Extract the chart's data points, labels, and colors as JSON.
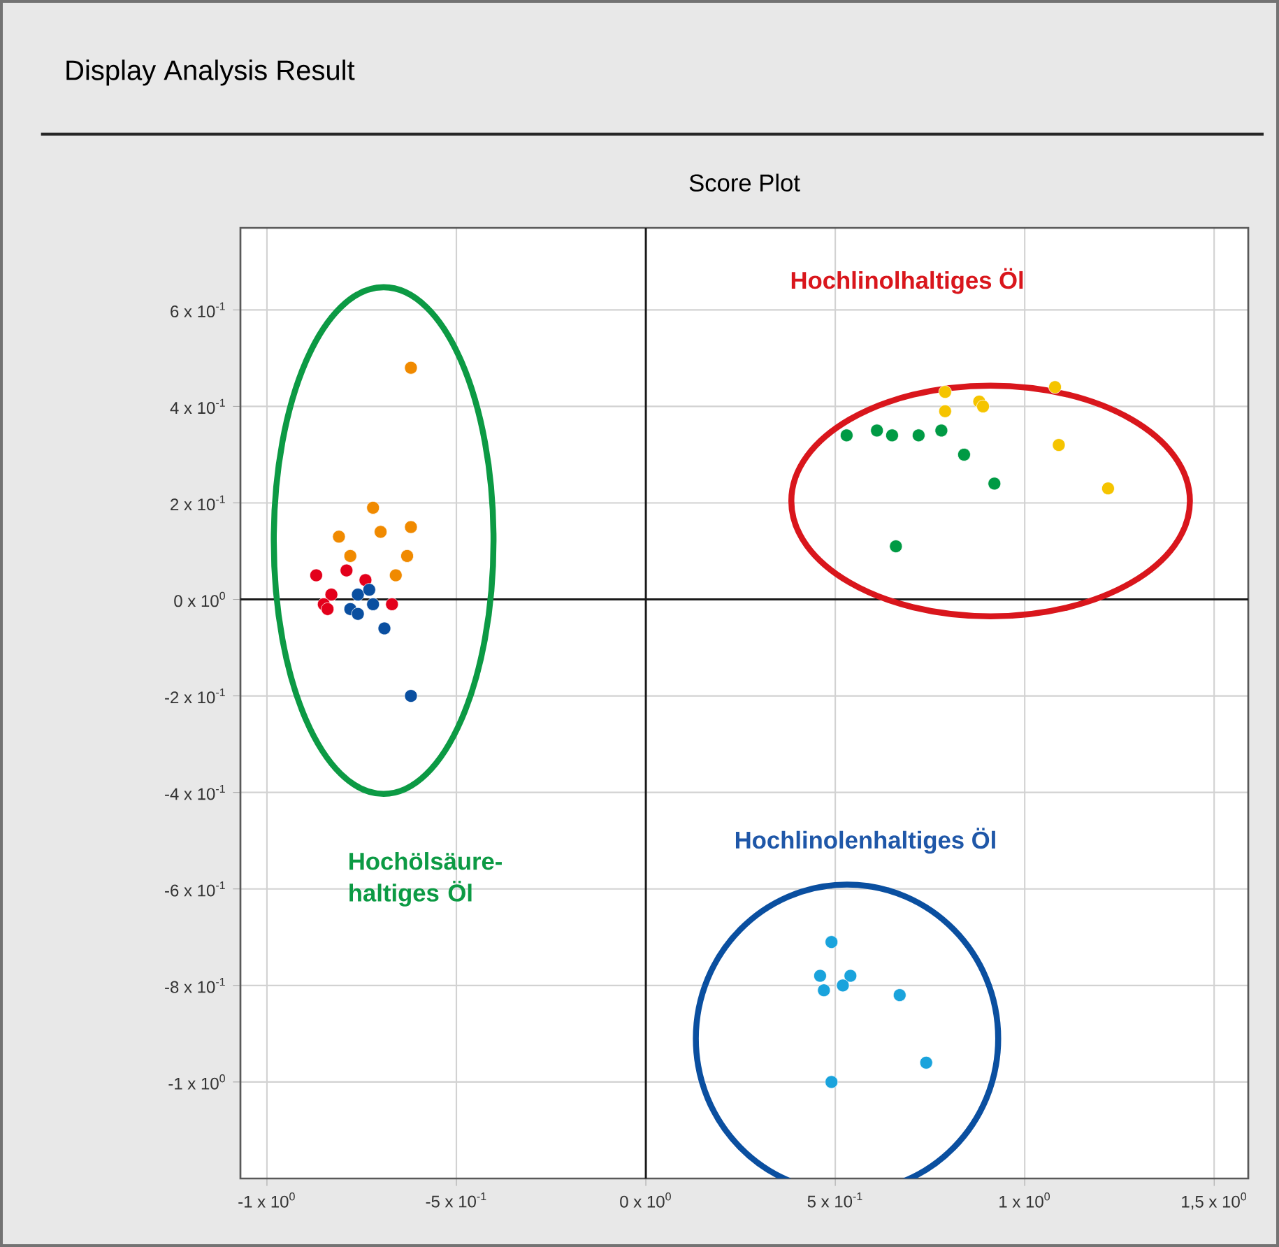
{
  "chart_data": {
    "type": "scatter",
    "title": "Display Analysis Result",
    "subtitle": "Score Plot",
    "xlim": [
      -1.07,
      1.59
    ],
    "ylim": [
      -1.2,
      0.77
    ],
    "xticks": [
      {
        "value": -1,
        "label": "-1 x 10$^{0}$"
      },
      {
        "value": -0.5,
        "label": "-5 x 10$^{-1}$"
      },
      {
        "value": 0,
        "label": "0 x 10$^{0}$"
      },
      {
        "value": 0.5,
        "label": "5 x 10$^{-1}$"
      },
      {
        "value": 1,
        "label": "1 x 10$^{0}$"
      },
      {
        "value": 1.5,
        "label": "1,5 x 10$^{0}$"
      }
    ],
    "yticks": [
      {
        "value": -1,
        "label": "-1 x 10$^{0}$"
      },
      {
        "value": -0.8,
        "label": "-8 x 10$^{-1}$"
      },
      {
        "value": -0.6,
        "label": "-6 x 10$^{-1}$"
      },
      {
        "value": -0.4,
        "label": "-4 x 10$^{-1}$"
      },
      {
        "value": -0.2,
        "label": "-2 x 10$^{-1}$"
      },
      {
        "value": 0,
        "label": "0 x 10$^{0}$"
      },
      {
        "value": 0.2,
        "label": "2 x 10$^{-1}$"
      },
      {
        "value": 0.4,
        "label": "4 x 10$^{-1}$"
      },
      {
        "value": 0.6,
        "label": "6 x 10$^{-1}$"
      }
    ],
    "grid": true,
    "annotations": [
      "Hochlinolhaltiges Öl",
      "Hochölsäure-haltiges Öl",
      "Hochlinolenhaltiges Öl"
    ],
    "series": [
      {
        "color": "#f08a00",
        "x": [
          -0.62,
          -0.72,
          -0.81,
          -0.7,
          -0.62,
          -0.78,
          -0.63,
          -0.66
        ],
        "values": [
          0.48,
          0.19,
          0.13,
          0.14,
          0.15,
          0.09,
          0.09,
          0.05
        ]
      },
      {
        "color": "#e3001b",
        "x": [
          -0.87,
          -0.79,
          -0.74,
          -0.83,
          -0.85,
          -0.84,
          -0.67
        ],
        "values": [
          0.05,
          0.06,
          0.04,
          0.01,
          -0.01,
          -0.02,
          -0.01
        ]
      },
      {
        "color": "#0a4fa0",
        "x": [
          -0.76,
          -0.73,
          -0.78,
          -0.76,
          -0.72,
          -0.69,
          -0.62
        ],
        "values": [
          0.01,
          0.02,
          -0.02,
          -0.03,
          -0.01,
          -0.06,
          -0.2
        ]
      },
      {
        "color": "#f5c400",
        "x": [
          0.79,
          0.79,
          0.88,
          0.89,
          1.08,
          1.09,
          1.22
        ],
        "values": [
          0.43,
          0.39,
          0.41,
          0.4,
          0.44,
          0.32,
          0.23
        ]
      },
      {
        "color": "#009a44",
        "x": [
          0.53,
          0.61,
          0.65,
          0.72,
          0.78,
          0.84,
          0.92,
          0.66
        ],
        "values": [
          0.34,
          0.35,
          0.34,
          0.34,
          0.35,
          0.3,
          0.24,
          0.11
        ]
      },
      {
        "color": "#1aa3dc",
        "x": [
          0.49,
          0.46,
          0.54,
          0.47,
          0.52,
          0.67,
          0.74,
          0.49
        ],
        "values": [
          -0.71,
          -0.78,
          -0.78,
          -0.81,
          -0.8,
          -0.82,
          -0.96,
          -1.0
        ]
      }
    ]
  }
}
